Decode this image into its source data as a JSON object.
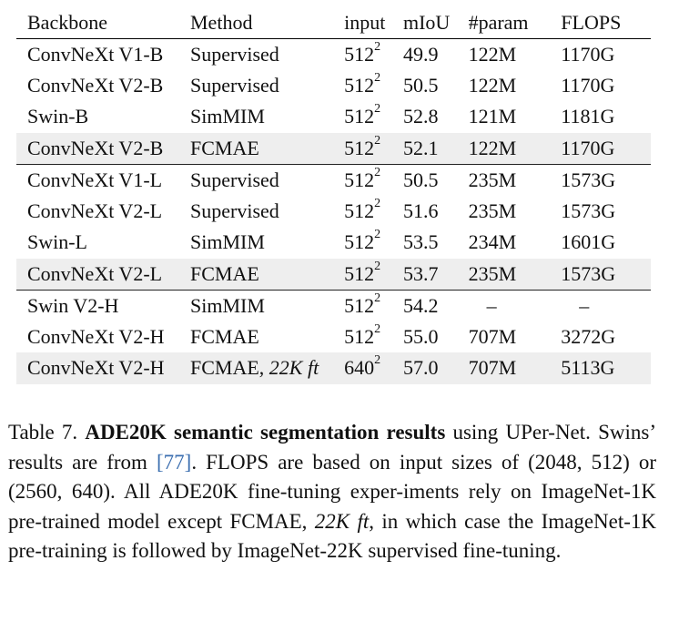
{
  "table": {
    "headers": [
      "Backbone",
      "Method",
      "input",
      "mIoU",
      "#param",
      "FLOPS"
    ],
    "rows": [
      {
        "backbone": "ConvNeXt V1-B",
        "method": "Supervised",
        "input": "512",
        "input_sup": "2",
        "miou": "49.9",
        "param": "122M",
        "flops": "1170G"
      },
      {
        "backbone": "ConvNeXt V2-B",
        "method": "Supervised",
        "input": "512",
        "input_sup": "2",
        "miou": "50.5",
        "param": "122M",
        "flops": "1170G"
      },
      {
        "backbone": "Swin-B",
        "method": "SimMIM",
        "input": "512",
        "input_sup": "2",
        "miou": "52.8",
        "param": "121M",
        "flops": "1181G"
      },
      {
        "backbone": "ConvNeXt V2-B",
        "method": "FCMAE",
        "input": "512",
        "input_sup": "2",
        "miou": "52.1",
        "param": "122M",
        "flops": "1170G"
      },
      {
        "backbone": "ConvNeXt V1-L",
        "method": "Supervised",
        "input": "512",
        "input_sup": "2",
        "miou": "50.5",
        "param": "235M",
        "flops": "1573G"
      },
      {
        "backbone": "ConvNeXt V2-L",
        "method": "Supervised",
        "input": "512",
        "input_sup": "2",
        "miou": "51.6",
        "param": "235M",
        "flops": "1573G"
      },
      {
        "backbone": "Swin-L",
        "method": "SimMIM",
        "input": "512",
        "input_sup": "2",
        "miou": "53.5",
        "param": "234M",
        "flops": "1601G"
      },
      {
        "backbone": "ConvNeXt V2-L",
        "method": "FCMAE",
        "input": "512",
        "input_sup": "2",
        "miou": "53.7",
        "param": "235M",
        "flops": "1573G"
      },
      {
        "backbone": "Swin V2-H",
        "method": "SimMIM",
        "input": "512",
        "input_sup": "2",
        "miou": "54.2",
        "param": "–",
        "flops": "–"
      },
      {
        "backbone": "ConvNeXt V2-H",
        "method": "FCMAE",
        "input": "512",
        "input_sup": "2",
        "miou": "55.0",
        "param": "707M",
        "flops": "3272G"
      },
      {
        "backbone": "ConvNeXt V2-H",
        "method": "FCMAE, ",
        "method_italic": "22K ft",
        "input": "640",
        "input_sup": "2",
        "miou": "57.0",
        "param": "707M",
        "flops": "5113G"
      }
    ]
  },
  "caption": {
    "prefix": "Table 7. ",
    "title": "ADE20K semantic segmentation results",
    "text1": " using UPer-Net. Swins’ results are from ",
    "cite": "[77]",
    "text2": ". FLOPS are based on input sizes of (2048, 512) or (2560, 640). All ADE20K fine-tuning exper-iments rely on ImageNet-1K pre-trained model except FCMAE, ",
    "italic": "22K ft",
    "text3": ", in which case the ImageNet-1K pre-training is followed by ImageNet-22K supervised fine-tuning."
  }
}
